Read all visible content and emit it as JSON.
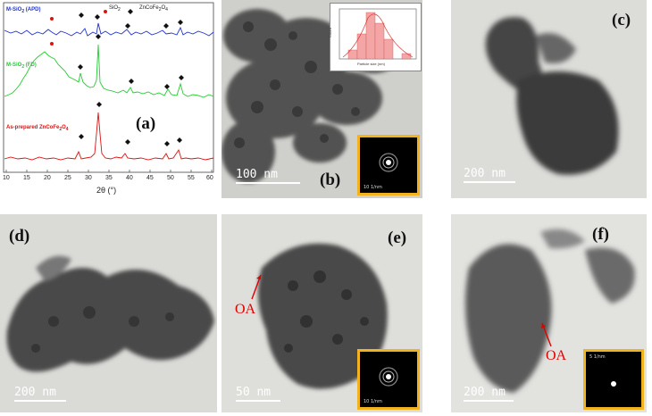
{
  "panels": {
    "a": {
      "label": "(a)",
      "legend": {
        "sio2": "SiO",
        "sio2_sub": "2",
        "zcf": "ZnCoFe",
        "zcf_sub1": "2",
        "zcf_o": "O",
        "zcf_sub2": "4"
      },
      "curves": {
        "apd": {
          "text": "M-SiO",
          "sub": "2",
          "tail": " (APD)",
          "color": "#2233cc"
        },
        "fd": {
          "text": "M-SiO",
          "sub": "2",
          "tail": " (FD)",
          "color": "#22cc33"
        },
        "asprep": {
          "text": "As-prepared ZnCoFe",
          "sub1": "2",
          "o": "O",
          "sub2": "4",
          "color": "#dd1111"
        }
      },
      "xaxis": {
        "label": "2θ (°)",
        "ticks": [
          "10",
          "15",
          "20",
          "25",
          "30",
          "35",
          "40",
          "45",
          "50",
          "55",
          "60"
        ]
      }
    },
    "b": {
      "label": "(b)",
      "scale": "100 nm",
      "histogram_xlabel": "Particle size (nm)",
      "histogram_ylabel": "Count",
      "saed_scale": "10 1/nm"
    },
    "c": {
      "label": "(c)",
      "scale": "200 nm"
    },
    "d": {
      "label": "(d)",
      "scale": "200 nm"
    },
    "e": {
      "label": "(e)",
      "scale": "50 nm",
      "annotation": "OA",
      "saed_scale": "10 1/nm"
    },
    "f": {
      "label": "(f)",
      "scale": "200 nm",
      "annotation": "OA",
      "saed_scale": "5 1/nm"
    }
  },
  "colors": {
    "inset_border": "#f2b321",
    "annotation": "#e00000"
  }
}
